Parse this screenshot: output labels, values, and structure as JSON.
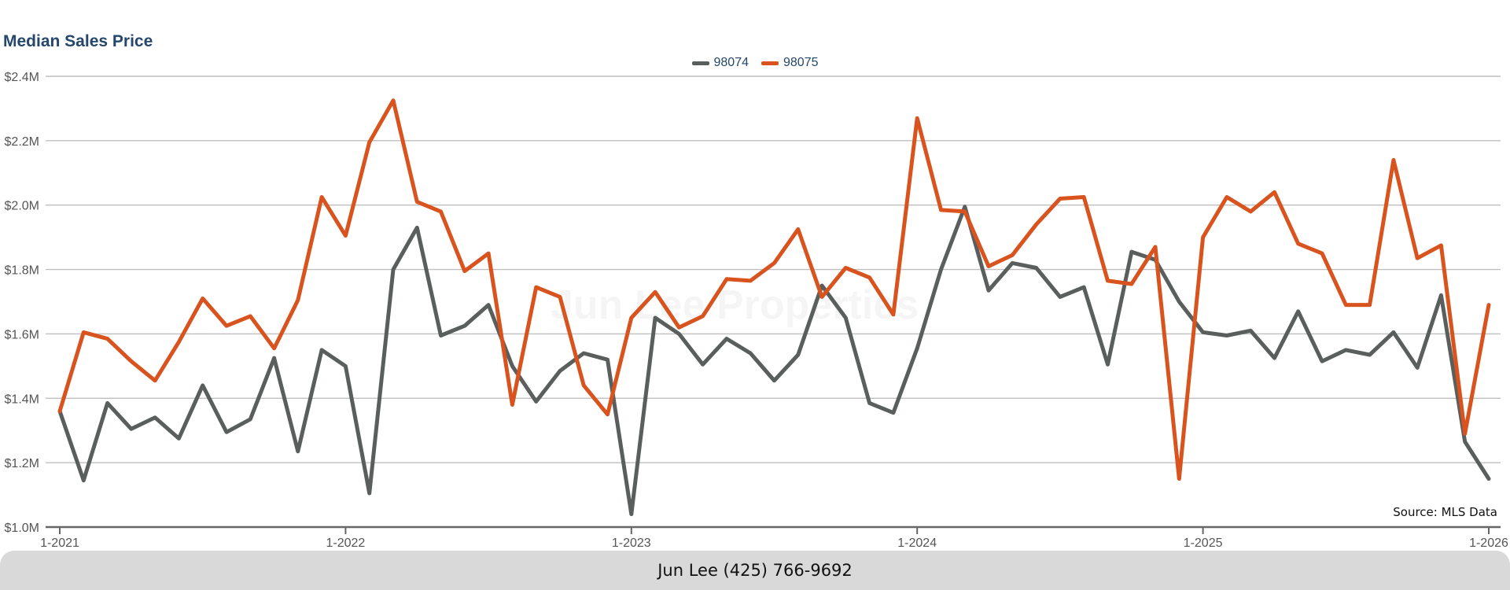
{
  "chart_data": {
    "type": "line",
    "title": "Median Sales Price",
    "xlabel": "",
    "ylabel": "",
    "ylim": [
      1000000,
      2400000
    ],
    "yticks": [
      1000000,
      1200000,
      1400000,
      1600000,
      1800000,
      2000000,
      2200000,
      2400000
    ],
    "ytick_labels": [
      "$1.0M",
      "$1.2M",
      "$1.4M",
      "$1.6M",
      "$1.8M",
      "$2.0M",
      "$2.2M",
      "$2.4M"
    ],
    "x_start": "1-2021",
    "x_end": "1-2026",
    "xtick_labels": [
      "1-2021",
      "1-2022",
      "1-2023",
      "1-2024",
      "1-2025",
      "1-2026"
    ],
    "legend_position": "top-center",
    "grid": true,
    "series": [
      {
        "name": "98074",
        "color": "#5a5f5e",
        "values": [
          1360000,
          1145000,
          1385000,
          1305000,
          1340000,
          1275000,
          1440000,
          1295000,
          1335000,
          1525000,
          1235000,
          1550000,
          1500000,
          1105000,
          1800000,
          1930000,
          1595000,
          1625000,
          1690000,
          1500000,
          1390000,
          1485000,
          1540000,
          1520000,
          1040000,
          1650000,
          1600000,
          1505000,
          1585000,
          1540000,
          1455000,
          1535000,
          1750000,
          1650000,
          1385000,
          1355000,
          1555000,
          1800000,
          1995000,
          1735000,
          1820000,
          1805000,
          1715000,
          1745000,
          1505000,
          1855000,
          1830000,
          1700000,
          1605000,
          1595000,
          1610000,
          1525000,
          1670000,
          1515000,
          1550000,
          1535000,
          1605000,
          1495000,
          1720000,
          1265000,
          1150000
        ]
      },
      {
        "name": "98075",
        "color": "#d9531e",
        "values": [
          1360000,
          1605000,
          1585000,
          1515000,
          1455000,
          1575000,
          1710000,
          1625000,
          1655000,
          1555000,
          1705000,
          2025000,
          1905000,
          2195000,
          2325000,
          2010000,
          1980000,
          1795000,
          1850000,
          1380000,
          1745000,
          1715000,
          1440000,
          1350000,
          1650000,
          1730000,
          1620000,
          1655000,
          1770000,
          1765000,
          1820000,
          1925000,
          1715000,
          1805000,
          1775000,
          1660000,
          2270000,
          1985000,
          1980000,
          1810000,
          1845000,
          1940000,
          2020000,
          2025000,
          1765000,
          1755000,
          1870000,
          1150000,
          1900000,
          2025000,
          1980000,
          2040000,
          1880000,
          1850000,
          1690000,
          1690000,
          2140000,
          1835000,
          1875000,
          1290000,
          1690000
        ]
      }
    ]
  },
  "source_label": "Source: MLS Data",
  "footer_text": "Jun Lee (425) 766-9692",
  "watermark_text": "Jun Lee Properties",
  "grid_color": "#bfbfbf",
  "axis_color": "#666666"
}
